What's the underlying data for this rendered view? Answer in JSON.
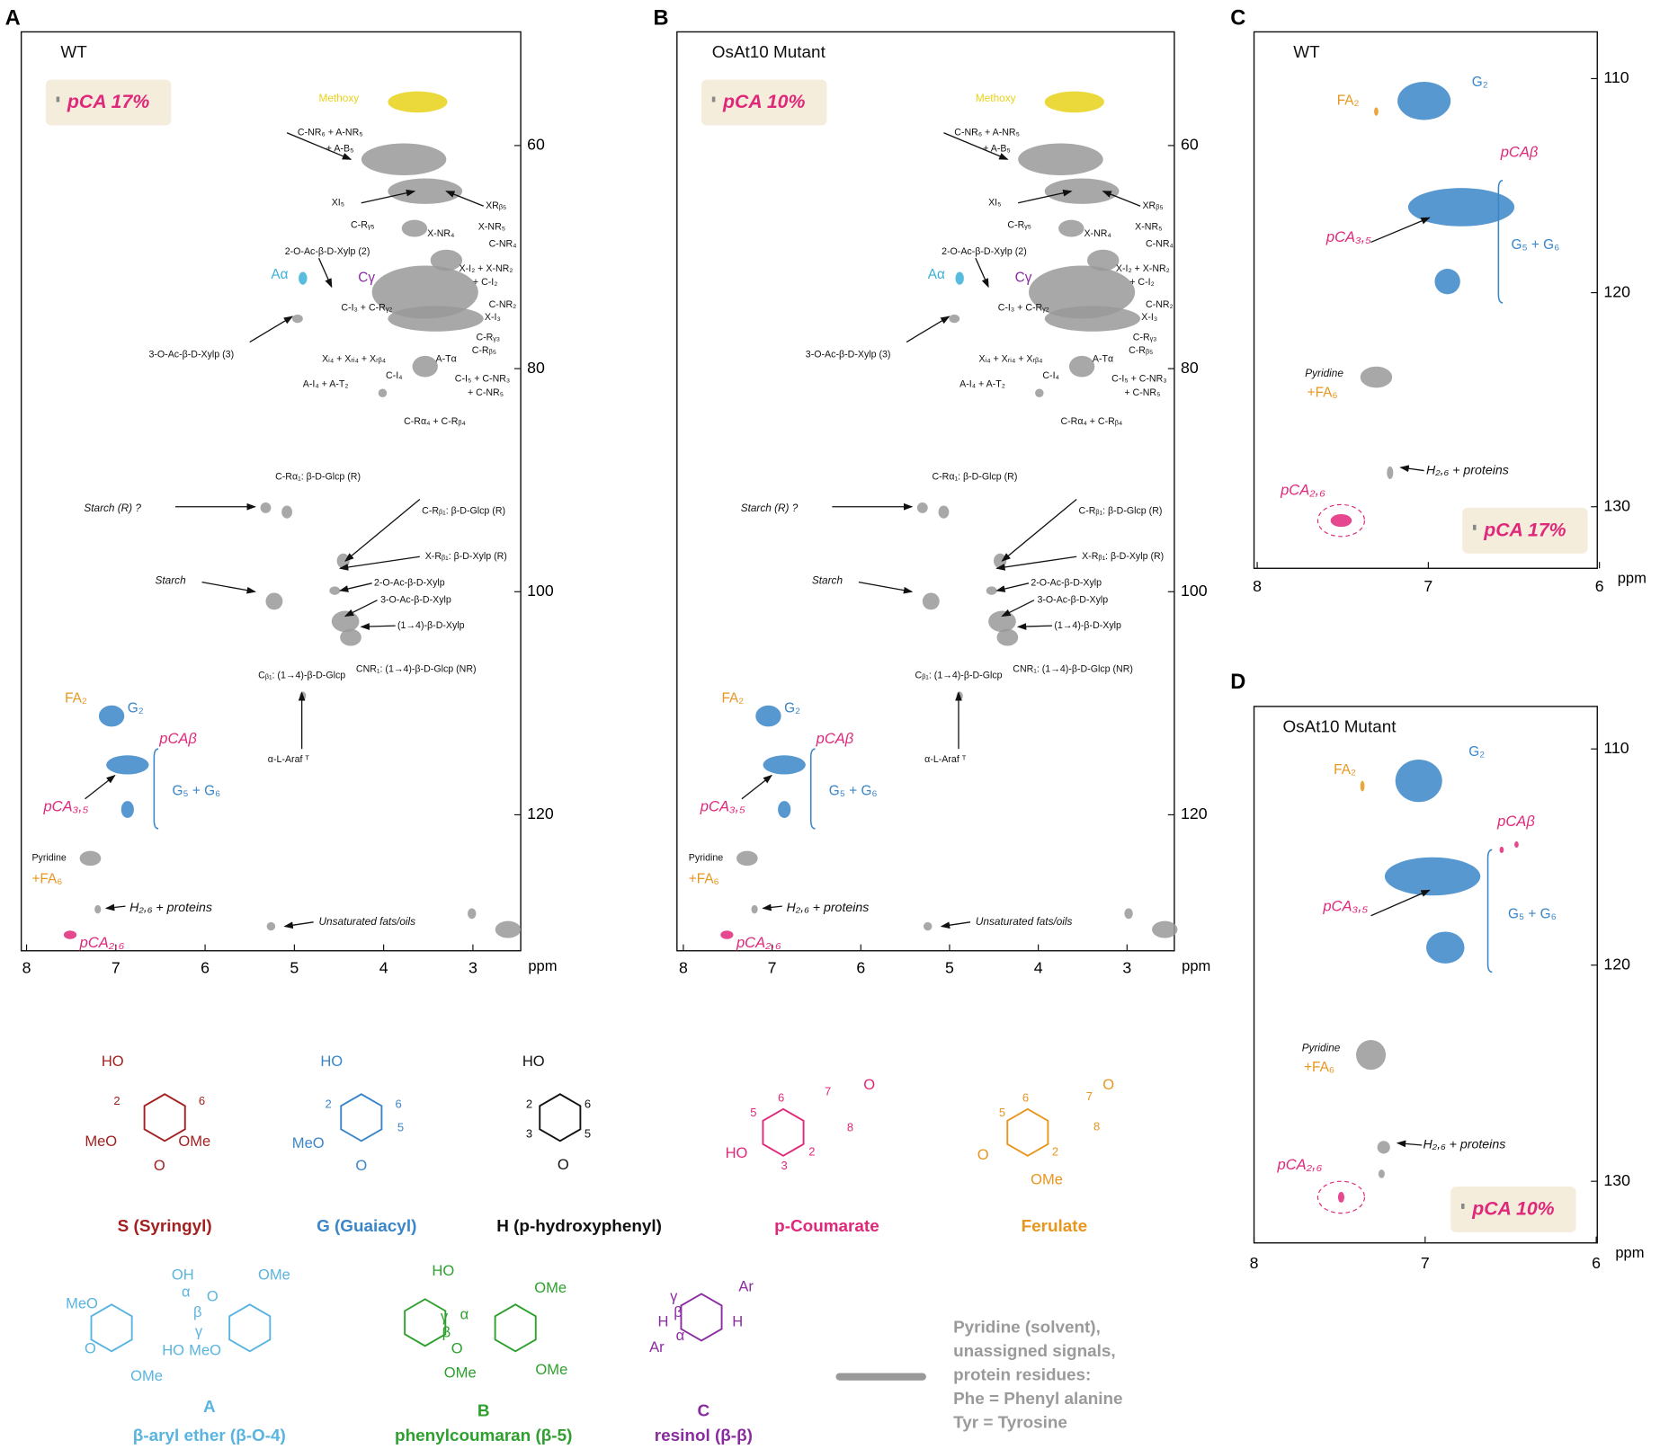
{
  "panels": [
    {
      "letter": "A",
      "title": "WT",
      "badge": "pCA 17%",
      "xticks": [
        8,
        7,
        6,
        5,
        4,
        3
      ],
      "yticks": [
        60,
        80,
        100,
        120
      ],
      "unit": "ppm",
      "labels": [
        "Methoxy",
        "C-NR₆ + A-NR₅",
        "+ A-B₅",
        "XI₅",
        "XRᵦ₅",
        "C-Rᵧ₅",
        "X-NR₅",
        "X-NR₄",
        "C-NR₄",
        "2-O-Ac-β-D-Xylp (2)",
        "Aα",
        "Cγ",
        "X-I₂ + X-NR₂",
        "+ C-I₂",
        "C-I₃ + C-Rᵧ₂",
        "C-NR₂",
        "X-I₃",
        "C-Rᵧ₃",
        "C-Rᵦ₅",
        "3-O-Ac-β-D-Xylp (3)",
        "Xᵢ₄ + Xᵣᵢ₄ + Xᵣᵦ₄",
        "A-Tα",
        "C-I₄",
        "C-I₅ + C-NR₃",
        "+ C-NR₅",
        "A-I₄ + A-T₂",
        "C-Rα₄ + C-Rᵦ₄",
        "C-Rα₁: β-D-Glcp (R)",
        "Starch (R) ?",
        "C-Rᵦ₁: β-D-Glcp (R)",
        "X-Rᵦ₁: β-D-Xylp (R)",
        "Starch",
        "2-O-Ac-β-D-Xylp",
        "3-O-Ac-β-D-Xylp",
        "(1→4)-β-D-Xylp",
        "Cᵦ₁: (1→4)-β-D-Glcp",
        "CNR₁: (1→4)-β-D-Glcp (NR)",
        "α-L-Araf ᵀ",
        "FA₂",
        "G₂",
        "pCAβ",
        "G₅ + G₆",
        "pCA₃,₅",
        "Pyridine",
        "+FA₆",
        "H₂,₆ + proteins",
        "Unsaturated fats/oils",
        "pCA₂,₆"
      ]
    },
    {
      "letter": "B",
      "title": "OsAt10 Mutant",
      "badge": "pCA 10%",
      "xticks": [
        8,
        7,
        6,
        5,
        4,
        3
      ],
      "yticks": [
        60,
        80,
        100,
        120
      ],
      "unit": "ppm",
      "labels": [
        "Methoxy",
        "C-NR₆ + A-NR₅",
        "+ A-B₅",
        "XI₅",
        "XRᵦ₅",
        "C-Rᵧ₅",
        "X-NR₅",
        "X-NR₄",
        "C-NR₄",
        "2-O-Ac-β-D-Xylp (2)",
        "Aα",
        "Cγ",
        "X-I₂ + X-NR₂",
        "+ C-I₂",
        "C-I₃ + C-Rᵧ₂",
        "C-NR₂",
        "X-I₃",
        "C-Rᵧ₃",
        "C-Rᵦ₅",
        "3-O-Ac-β-D-Xylp (3)",
        "Xᵢ₄ + Xᵣᵢ₄ + Xᵣᵦ₄",
        "A-Tα",
        "C-I₄",
        "C-I₅ + C-NR₃",
        "+ C-NR₅",
        "A-I₄ + A-T₂",
        "C-Rα₄ + C-Rᵦ₄",
        "C-Rα₁: β-D-Glcp (R)",
        "Starch (R) ?",
        "C-Rᵦ₁: β-D-Glcp (R)",
        "X-Rᵦ₁: β-D-Xylp (R)",
        "Starch",
        "2-O-Ac-β-D-Xylp",
        "3-O-Ac-β-D-Xylp",
        "(1→4)-β-D-Xylp",
        "Cᵦ₁: (1→4)-β-D-Glcp",
        "CNR₁: (1→4)-β-D-Glcp (NR)",
        "α-L-Araf ᵀ",
        "FA₂",
        "G₂",
        "pCAβ",
        "G₅ + G₆",
        "pCA₃,₅",
        "Pyridine",
        "+FA₆",
        "H₂,₆ + proteins",
        "Unsaturated fats/oils",
        "pCA₂,₆"
      ]
    },
    {
      "letter": "C",
      "title": "WT",
      "badge": "pCA 17%",
      "xticks": [
        8,
        7,
        6
      ],
      "yticks": [
        110,
        120,
        130
      ],
      "unit": "ppm",
      "labels": [
        "FA₂",
        "G₂",
        "pCAβ",
        "pCA₃,₅",
        "G₅ + G₆",
        "Pyridine",
        "+FA₆",
        "H₂,₆ + proteins",
        "pCA₂,₆"
      ]
    },
    {
      "letter": "D",
      "title": "OsAt10 Mutant",
      "badge": "pCA 10%",
      "xticks": [
        8,
        7,
        6
      ],
      "yticks": [
        110,
        120,
        130
      ],
      "unit": "ppm",
      "labels": [
        "FA₂",
        "G₂",
        "pCAβ",
        "pCA₃,₅",
        "G₅ + G₆",
        "Pyridine",
        "+FA₆",
        "H₂,₆ + proteins",
        "pCA₂,₆"
      ]
    }
  ],
  "structures": [
    {
      "caption": "S (Syringyl)",
      "atoms": [
        "HO",
        "2",
        "6",
        "MeO",
        "OMe",
        "O"
      ]
    },
    {
      "caption": "G (Guaiacyl)",
      "atoms": [
        "HO",
        "2",
        "6",
        "5",
        "MeO",
        "O"
      ]
    },
    {
      "caption": "H (p-hydroxyphenyl)",
      "atoms": [
        "HO",
        "2",
        "6",
        "3",
        "5",
        "O"
      ]
    },
    {
      "caption": "p-Coumarate",
      "atoms": [
        "6",
        "7",
        "O",
        "5",
        "8",
        "2",
        "HO",
        "3"
      ]
    },
    {
      "caption": "Ferulate",
      "atoms": [
        "6",
        "7",
        "O",
        "5",
        "8",
        "O",
        "2",
        "OMe"
      ]
    },
    {
      "letter": "A",
      "caption": "β-aryl ether (β-O-4)",
      "atoms": [
        "OH",
        "α",
        "OMe",
        "MeO",
        "β",
        "O",
        "γ",
        "HO",
        "MeO",
        "O",
        "OMe"
      ]
    },
    {
      "letter": "B",
      "caption": "phenylcoumaran (β-5)",
      "atoms": [
        "HO",
        "γ",
        "β",
        "α",
        "OMe",
        "O",
        "OMe",
        "OMe"
      ]
    },
    {
      "letter": "C",
      "caption": "resinol (β-β)",
      "atoms": [
        "γ",
        "Ar",
        "H",
        "β",
        "H",
        "α",
        "Ar"
      ]
    }
  ],
  "legend": [
    "Pyridine (solvent),",
    "unassigned signals,",
    "protein residues:",
    "Phe = Phenyl alanine",
    "Tyr = Tyrosine"
  ]
}
